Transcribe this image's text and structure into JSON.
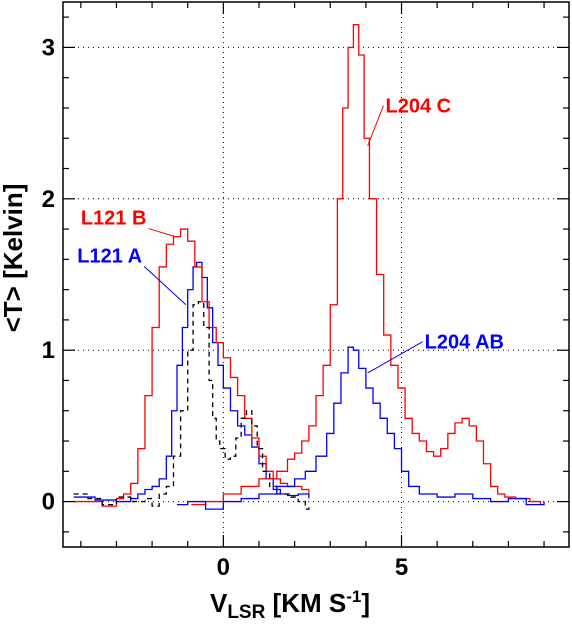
{
  "chart_data": {
    "type": "line",
    "title": "",
    "xlabel": {
      "main": "V",
      "sub": "LSR",
      "unit_open": " [KM S",
      "unit_sup": "-1",
      "unit_close": "]"
    },
    "ylabel": "<T> [Kelvin]",
    "xlim": [
      -4.5,
      9.7
    ],
    "ylim": [
      -0.3,
      3.3
    ],
    "xticks": [
      0,
      5
    ],
    "yticks": [
      0,
      1,
      2,
      3
    ],
    "grid": true,
    "legend": "none",
    "series": [
      {
        "name": "L121 A",
        "color": "#0000ff",
        "style": "solid",
        "points": [
          [
            -4.2,
            0.03
          ],
          [
            -3.6,
            0.01
          ],
          [
            -3.0,
            0.0
          ],
          [
            -2.6,
            0.02
          ],
          [
            -2.4,
            0.05
          ],
          [
            -2.2,
            0.08
          ],
          [
            -2.0,
            0.1
          ],
          [
            -1.8,
            0.15
          ],
          [
            -1.6,
            0.3
          ],
          [
            -1.45,
            0.6
          ],
          [
            -1.3,
            0.9
          ],
          [
            -1.15,
            1.15
          ],
          [
            -1.0,
            1.4
          ],
          [
            -0.85,
            1.55
          ],
          [
            -0.75,
            1.58
          ],
          [
            -0.6,
            1.48
          ],
          [
            -0.45,
            1.28
          ],
          [
            -0.3,
            1.05
          ],
          [
            -0.15,
            0.9
          ],
          [
            0.0,
            0.75
          ],
          [
            0.2,
            0.6
          ],
          [
            0.4,
            0.5
          ],
          [
            0.6,
            0.44
          ],
          [
            0.8,
            0.36
          ],
          [
            1.0,
            0.25
          ],
          [
            1.2,
            0.15
          ],
          [
            1.4,
            0.08
          ],
          [
            1.6,
            0.05
          ],
          [
            1.8,
            0.04
          ],
          [
            2.1,
            0.05
          ],
          [
            2.4,
            0.02
          ]
        ]
      },
      {
        "name": "L121 B",
        "color": "#ff0000",
        "style": "solid",
        "points": [
          [
            -4.2,
            0.0
          ],
          [
            -3.8,
            0.0
          ],
          [
            -3.4,
            -0.03
          ],
          [
            -3.0,
            0.02
          ],
          [
            -2.8,
            0.05
          ],
          [
            -2.6,
            0.12
          ],
          [
            -2.4,
            0.35
          ],
          [
            -2.2,
            0.7
          ],
          [
            -2.0,
            1.15
          ],
          [
            -1.8,
            1.55
          ],
          [
            -1.6,
            1.7
          ],
          [
            -1.4,
            1.75
          ],
          [
            -1.2,
            1.8
          ],
          [
            -1.0,
            1.72
          ],
          [
            -0.8,
            1.55
          ],
          [
            -0.6,
            1.32
          ],
          [
            -0.4,
            1.15
          ],
          [
            -0.2,
            1.05
          ],
          [
            0.0,
            0.95
          ],
          [
            0.2,
            0.82
          ],
          [
            0.4,
            0.7
          ],
          [
            0.6,
            0.55
          ],
          [
            0.8,
            0.42
          ],
          [
            1.0,
            0.3
          ],
          [
            1.2,
            0.2
          ],
          [
            1.4,
            0.15
          ],
          [
            1.6,
            0.12
          ],
          [
            1.8,
            0.1
          ],
          [
            2.0,
            0.1
          ],
          [
            2.2,
            0.08
          ],
          [
            2.4,
            0.05
          ]
        ]
      },
      {
        "name": "",
        "color": "#000000",
        "style": "dashed",
        "points": [
          [
            -4.2,
            0.05
          ],
          [
            -3.8,
            0.02
          ],
          [
            -3.4,
            -0.02
          ],
          [
            -3.0,
            0.03
          ],
          [
            -2.6,
            0.0
          ],
          [
            -2.2,
            0.02
          ],
          [
            -2.0,
            -0.03
          ],
          [
            -1.8,
            0.05
          ],
          [
            -1.6,
            0.1
          ],
          [
            -1.4,
            0.3
          ],
          [
            -1.2,
            0.6
          ],
          [
            -1.0,
            1.0
          ],
          [
            -0.85,
            1.3
          ],
          [
            -0.7,
            1.32
          ],
          [
            -0.55,
            1.15
          ],
          [
            -0.4,
            0.8
          ],
          [
            -0.3,
            0.55
          ],
          [
            -0.2,
            0.4
          ],
          [
            -0.1,
            0.35
          ],
          [
            0.05,
            0.28
          ],
          [
            0.2,
            0.3
          ],
          [
            0.35,
            0.42
          ],
          [
            0.5,
            0.55
          ],
          [
            0.65,
            0.6
          ],
          [
            0.8,
            0.5
          ],
          [
            0.95,
            0.35
          ],
          [
            1.1,
            0.2
          ],
          [
            1.3,
            0.1
          ],
          [
            1.5,
            0.05
          ],
          [
            1.7,
            0.05
          ],
          [
            1.9,
            0.03
          ],
          [
            2.1,
            0.0
          ],
          [
            2.3,
            -0.05
          ],
          [
            2.4,
            -0.02
          ]
        ]
      },
      {
        "name": "L204 C",
        "color": "#ff0000",
        "style": "solid",
        "points": [
          [
            -0.9,
            -0.02
          ],
          [
            -0.5,
            0.0
          ],
          [
            0.0,
            0.05
          ],
          [
            0.5,
            0.1
          ],
          [
            1.0,
            0.15
          ],
          [
            1.5,
            0.2
          ],
          [
            1.8,
            0.28
          ],
          [
            2.0,
            0.32
          ],
          [
            2.2,
            0.4
          ],
          [
            2.4,
            0.5
          ],
          [
            2.6,
            0.7
          ],
          [
            2.8,
            0.9
          ],
          [
            3.0,
            1.3
          ],
          [
            3.2,
            2.0
          ],
          [
            3.35,
            2.6
          ],
          [
            3.5,
            3.0
          ],
          [
            3.65,
            3.15
          ],
          [
            3.8,
            2.95
          ],
          [
            3.95,
            2.4
          ],
          [
            4.1,
            2.0
          ],
          [
            4.3,
            1.5
          ],
          [
            4.5,
            1.1
          ],
          [
            4.7,
            0.9
          ],
          [
            4.9,
            0.75
          ],
          [
            5.1,
            0.55
          ],
          [
            5.3,
            0.45
          ],
          [
            5.5,
            0.4
          ],
          [
            5.7,
            0.33
          ],
          [
            5.9,
            0.3
          ],
          [
            6.1,
            0.35
          ],
          [
            6.3,
            0.45
          ],
          [
            6.5,
            0.52
          ],
          [
            6.7,
            0.55
          ],
          [
            6.9,
            0.5
          ],
          [
            7.1,
            0.4
          ],
          [
            7.3,
            0.25
          ],
          [
            7.5,
            0.1
          ],
          [
            7.7,
            0.05
          ],
          [
            7.9,
            0.03
          ],
          [
            8.2,
            0.02
          ],
          [
            8.6,
            0.0
          ],
          [
            8.9,
            -0.02
          ]
        ]
      },
      {
        "name": "L204 AB",
        "color": "#0000ff",
        "style": "solid",
        "points": [
          [
            -1.3,
            -0.02
          ],
          [
            -1.0,
            0.0
          ],
          [
            -0.5,
            -0.05
          ],
          [
            0.0,
            0.0
          ],
          [
            0.5,
            0.02
          ],
          [
            1.0,
            0.05
          ],
          [
            1.5,
            0.1
          ],
          [
            2.0,
            0.15
          ],
          [
            2.3,
            0.2
          ],
          [
            2.6,
            0.3
          ],
          [
            2.9,
            0.45
          ],
          [
            3.1,
            0.65
          ],
          [
            3.3,
            0.85
          ],
          [
            3.5,
            1.02
          ],
          [
            3.65,
            1.0
          ],
          [
            3.8,
            0.88
          ],
          [
            4.0,
            0.75
          ],
          [
            4.2,
            0.65
          ],
          [
            4.4,
            0.55
          ],
          [
            4.6,
            0.45
          ],
          [
            4.8,
            0.35
          ],
          [
            5.0,
            0.2
          ],
          [
            5.2,
            0.1
          ],
          [
            5.5,
            0.05
          ],
          [
            6.0,
            0.03
          ],
          [
            6.5,
            0.05
          ],
          [
            7.0,
            0.02
          ],
          [
            7.5,
            0.0
          ],
          [
            8.0,
            0.02
          ],
          [
            8.5,
            -0.02
          ],
          [
            9.0,
            0.0
          ]
        ]
      }
    ],
    "annotations": [
      {
        "text": "L121 B",
        "color": "#ff0000",
        "x": -4.0,
        "y": 1.83,
        "anchor_x": -1.35,
        "anchor_y": 1.75
      },
      {
        "text": "L121 A",
        "color": "#0000ff",
        "x": -4.1,
        "y": 1.58,
        "anchor_x": -1.05,
        "anchor_y": 1.3
      },
      {
        "text": "L204 C",
        "color": "#ff0000",
        "x": 4.55,
        "y": 2.57,
        "anchor_x": 4.05,
        "anchor_y": 2.35
      },
      {
        "text": "L204 AB",
        "color": "#0000ff",
        "x": 5.65,
        "y": 1.01,
        "anchor_x": 4.05,
        "anchor_y": 0.85
      }
    ]
  }
}
